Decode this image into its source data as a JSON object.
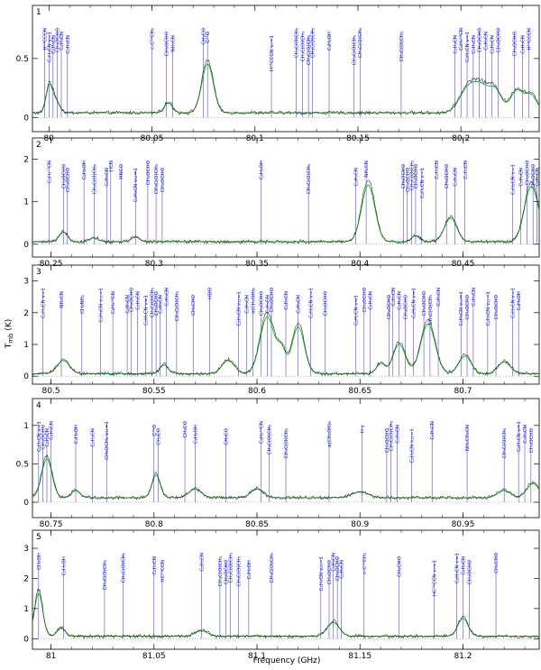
{
  "chart_data": {
    "type": "line",
    "xlabel": "Frequency (GHz)",
    "ylabel": "T_mb (K)",
    "series_colors": {
      "observed": "#222222",
      "model": "#19b019",
      "line_markers": "#2a2ad8"
    },
    "panels": [
      {
        "number": "1",
        "xlim": [
          79.992,
          80.238
        ],
        "ylim": [
          -0.12,
          0.95
        ],
        "xticks": [
          "80",
          "80.05",
          "80.1",
          "80.15",
          "80.2"
        ],
        "xtick_values": [
          80.0,
          80.05,
          80.1,
          80.15,
          80.2
        ],
        "yticks": [
          "0",
          "0.5"
        ],
        "ytick_values": [
          0,
          0.5
        ],
        "baseline": 0.04,
        "peaks": [
          [
            80.0,
            0.22,
            0.0015
          ],
          [
            80.003,
            0.12,
            0.002
          ],
          [
            80.058,
            0.09,
            0.002
          ],
          [
            80.077,
            0.45,
            0.0028
          ],
          [
            80.203,
            0.2,
            0.004
          ],
          [
            80.21,
            0.22,
            0.004
          ],
          [
            80.217,
            0.18,
            0.003
          ],
          [
            80.227,
            0.2,
            0.003
          ],
          [
            80.234,
            0.16,
            0.003
          ]
        ],
        "lines": [
          {
            "x": 79.998,
            "label": "H¹³CCCN"
          },
          {
            "x": 80.0,
            "label": "C₂H₅CN v=1"
          },
          {
            "x": 80.002,
            "label": "C₂H₅CN"
          },
          {
            "x": 80.004,
            "label": "CH₃OCHO"
          },
          {
            "x": 80.006,
            "label": "C₂H₃CN"
          },
          {
            "x": 80.009,
            "label": "C₂H₅CN"
          },
          {
            "x": 80.05,
            "label": "c-C¹³CH₂"
          },
          {
            "x": 80.057,
            "label": "CH₃OCHO"
          },
          {
            "x": 80.06,
            "label": "NH₂CN"
          },
          {
            "x": 80.075,
            "label": "CH₃CO"
          },
          {
            "x": 80.077,
            "label": "C¹⁷O"
          },
          {
            "x": 80.108,
            "label": "H¹³CCCN v₇=1"
          },
          {
            "x": 80.12,
            "label": "CH₃C(O)CH₃"
          },
          {
            "x": 80.123,
            "label": "CH₃C(O)CH₃"
          },
          {
            "x": 80.126,
            "label": "CH₃C(O)CH₃"
          },
          {
            "x": 80.128,
            "label": "CH₃C(O)CH₃"
          },
          {
            "x": 80.136,
            "label": "C₂H₃OH"
          },
          {
            "x": 80.148,
            "label": "CH₃C(O)CH₃"
          },
          {
            "x": 80.151,
            "label": "CH₃C(O)CH₃"
          },
          {
            "x": 80.171,
            "label": "CH₃C(O)CH₃"
          },
          {
            "x": 80.197,
            "label": "C₂H₃CN"
          },
          {
            "x": 80.2,
            "label": "C₂H₅¹³CN"
          },
          {
            "x": 80.203,
            "label": "C₂H₅CN v=1"
          },
          {
            "x": 80.206,
            "label": "C₂H₅CN"
          },
          {
            "x": 80.209,
            "label": "CH₃OCHO"
          },
          {
            "x": 80.212,
            "label": "C₂H₃CN"
          },
          {
            "x": 80.215,
            "label": "C₂H₅CN"
          },
          {
            "x": 80.218,
            "label": "CH₃OCHO"
          },
          {
            "x": 80.226,
            "label": "CH₃OCHO"
          },
          {
            "x": 80.23,
            "label": "C₂H₅CN"
          },
          {
            "x": 80.233,
            "label": "H¹³CCCN"
          }
        ]
      },
      {
        "number": "2",
        "xlim": [
          80.241,
          80.487
        ],
        "ylim": [
          -0.3,
          2.5
        ],
        "xticks": [
          "80.25",
          "80.3",
          "80.35",
          "80.4",
          "80.45"
        ],
        "xtick_values": [
          80.25,
          80.3,
          80.35,
          80.4,
          80.45
        ],
        "yticks": [
          "0",
          "1",
          "2"
        ],
        "ytick_values": [
          0,
          1,
          2
        ],
        "baseline": 0.06,
        "peaks": [
          [
            80.256,
            0.25,
            0.002
          ],
          [
            80.271,
            0.1,
            0.002
          ],
          [
            80.291,
            0.12,
            0.002
          ],
          [
            80.404,
            1.45,
            0.0032
          ],
          [
            80.427,
            0.15,
            0.002
          ],
          [
            80.444,
            0.6,
            0.003
          ],
          [
            80.482,
            0.9,
            0.003
          ],
          [
            80.485,
            0.7,
            0.003
          ]
        ],
        "lines": [
          {
            "x": 80.249,
            "label": "C₂H₅¹³CN"
          },
          {
            "x": 80.256,
            "label": "CH₃OCHO"
          },
          {
            "x": 80.258,
            "label": "CH₃OCHO"
          },
          {
            "x": 80.266,
            "label": "C₂H₃OH"
          },
          {
            "x": 80.271,
            "label": "CH₃C(O)CH₃"
          },
          {
            "x": 80.277,
            "label": "C₂H₅CN"
          },
          {
            "x": 80.279,
            "label": "HCN"
          },
          {
            "x": 80.284,
            "label": "HNCO"
          },
          {
            "x": 80.291,
            "label": "C₂H₃CN v₁₁=1"
          },
          {
            "x": 80.297,
            "label": "CH₃OCHO"
          },
          {
            "x": 80.301,
            "label": "CH₃C(O)CH₃"
          },
          {
            "x": 80.304,
            "label": "CH₃OCHO"
          },
          {
            "x": 80.352,
            "label": "C₂H₃OH"
          },
          {
            "x": 80.375,
            "label": "CH₃C(O)CH₃"
          },
          {
            "x": 80.398,
            "label": "C₂H₅CN"
          },
          {
            "x": 80.403,
            "label": "NH₂CN"
          },
          {
            "x": 80.421,
            "label": "CH₃OCHO"
          },
          {
            "x": 80.423,
            "label": "CH₃OCHO"
          },
          {
            "x": 80.425,
            "label": "CH₃C(O)CH₃"
          },
          {
            "x": 80.427,
            "label": "CH₃OCHO"
          },
          {
            "x": 80.43,
            "label": "C₂H₅CN v=1"
          },
          {
            "x": 80.437,
            "label": "C₂H₅CN"
          },
          {
            "x": 80.442,
            "label": "CH₃OCHO"
          },
          {
            "x": 80.446,
            "label": "C₂H₃CN"
          },
          {
            "x": 80.451,
            "label": "C₂H₅CN"
          },
          {
            "x": 80.474,
            "label": "C₂H₅CN v=1"
          },
          {
            "x": 80.478,
            "label": "C₂H₃CN"
          },
          {
            "x": 80.481,
            "label": "CH₃OCHO"
          },
          {
            "x": 80.484,
            "label": "CH₃OCHO"
          },
          {
            "x": 80.486,
            "label": "C₂H₅CN"
          }
        ]
      },
      {
        "number": "3",
        "xlim": [
          80.491,
          80.737
        ],
        "ylim": [
          -0.25,
          3.5
        ],
        "xticks": [
          "80.5",
          "80.55",
          "80.6",
          "80.65",
          "80.7"
        ],
        "xtick_values": [
          80.5,
          80.55,
          80.6,
          80.65,
          80.7
        ],
        "yticks": [
          "0",
          "1",
          "2",
          "3"
        ],
        "ytick_values": [
          0,
          1,
          2,
          3
        ],
        "baseline": 0.08,
        "peaks": [
          [
            80.506,
            0.45,
            0.003
          ],
          [
            80.555,
            0.3,
            0.002
          ],
          [
            80.586,
            0.45,
            0.003
          ],
          [
            80.605,
            1.95,
            0.0035
          ],
          [
            80.612,
            0.7,
            0.002
          ],
          [
            80.62,
            1.6,
            0.003
          ],
          [
            80.66,
            0.35,
            0.002
          ],
          [
            80.669,
            1.0,
            0.003
          ],
          [
            80.683,
            1.7,
            0.0035
          ],
          [
            80.701,
            0.6,
            0.003
          ],
          [
            80.72,
            0.4,
            0.003
          ]
        ],
        "lines": [
          {
            "x": 80.496,
            "label": "C₂H₅CN v=1"
          },
          {
            "x": 80.505,
            "label": "NH₂CN"
          },
          {
            "x": 80.515,
            "label": "CH₃NH₂"
          },
          {
            "x": 80.524,
            "label": "C₂H₃CN v₁₁=1"
          },
          {
            "x": 80.53,
            "label": "C₂H₅¹³CN"
          },
          {
            "x": 80.537,
            "label": "C₂H₅CN"
          },
          {
            "x": 80.539,
            "label": "CH₃OCHO"
          },
          {
            "x": 80.542,
            "label": "C₂H₃CN"
          },
          {
            "x": 80.546,
            "label": "C₂H₅CN v=1"
          },
          {
            "x": 80.549,
            "label": "CH₃C(O)CH₃"
          },
          {
            "x": 80.551,
            "label": "CH₃OCHO"
          },
          {
            "x": 80.553,
            "label": "C₂H₅CN"
          },
          {
            "x": 80.556,
            "label": "C₂H₃CN"
          },
          {
            "x": 80.561,
            "label": "CH₃C(O)CH₃"
          },
          {
            "x": 80.569,
            "label": "CH₃CHO"
          },
          {
            "x": 80.577,
            "label": "HDO"
          },
          {
            "x": 80.591,
            "label": "C₂H₃CN v₁₁=1"
          },
          {
            "x": 80.595,
            "label": "C₂H₅CN"
          },
          {
            "x": 80.598,
            "label": "a(CH₂OH)₂"
          },
          {
            "x": 80.602,
            "label": "CH₃OCHO"
          },
          {
            "x": 80.605,
            "label": "C₂H₅CN"
          },
          {
            "x": 80.607,
            "label": "CH₃OCHO"
          },
          {
            "x": 80.614,
            "label": "C₂H₅CN"
          },
          {
            "x": 80.62,
            "label": "C₂H₃CN"
          },
          {
            "x": 80.626,
            "label": "C₂H₅CN v=1"
          },
          {
            "x": 80.633,
            "label": "CH₃OCHO"
          },
          {
            "x": 80.648,
            "label": "C₂H₅CN v=1"
          },
          {
            "x": 80.652,
            "label": "CH₃OCHO"
          },
          {
            "x": 80.655,
            "label": "C₂H₅CN"
          },
          {
            "x": 80.664,
            "label": "CH₃OCHO"
          },
          {
            "x": 80.666,
            "label": "C₂H₅CN"
          },
          {
            "x": 80.669,
            "label": "C₂H₃CN"
          },
          {
            "x": 80.672,
            "label": "CH₃OCHO"
          },
          {
            "x": 80.676,
            "label": "C₂H₅CN v=1"
          },
          {
            "x": 80.681,
            "label": "CH₃OCHO"
          },
          {
            "x": 80.684,
            "label": "CH₃C(O)CH₃"
          },
          {
            "x": 80.688,
            "label": "C₂H₅CN"
          },
          {
            "x": 80.699,
            "label": "C₂H₃CN v₁₅=1"
          },
          {
            "x": 80.702,
            "label": "CH₃OCHO"
          },
          {
            "x": 80.705,
            "label": "C₂H₅CN"
          },
          {
            "x": 80.712,
            "label": "C₂H₃CN v₁₁=1"
          },
          {
            "x": 80.716,
            "label": "CH₃OCHO"
          },
          {
            "x": 80.724,
            "label": "C₂H₅CN v=1"
          },
          {
            "x": 80.727,
            "label": "C₂H₃OH"
          }
        ]
      },
      {
        "number": "4",
        "xlim": [
          80.741,
          80.987
        ],
        "ylim": [
          -0.2,
          1.35
        ],
        "xticks": [
          "80.75",
          "80.8",
          "80.85",
          "80.9",
          "80.95"
        ],
        "xtick_values": [
          80.75,
          80.8,
          80.85,
          80.9,
          80.95
        ],
        "yticks": [
          "0",
          "0.5",
          "1"
        ],
        "ytick_values": [
          0,
          0.5,
          1
        ],
        "baseline": 0.06,
        "peaks": [
          [
            80.748,
            0.55,
            0.0025
          ],
          [
            80.762,
            0.1,
            0.002
          ],
          [
            80.801,
            0.32,
            0.002
          ],
          [
            80.82,
            0.12,
            0.003
          ],
          [
            80.85,
            0.12,
            0.003
          ],
          [
            80.9,
            0.08,
            0.004
          ],
          [
            80.97,
            0.1,
            0.003
          ],
          [
            80.984,
            0.2,
            0.003
          ]
        ],
        "lines": [
          {
            "x": 80.744,
            "label": "C₂H₅CN v=1"
          },
          {
            "x": 80.746,
            "label": "CH₃OCHO"
          },
          {
            "x": 80.748,
            "label": "C₂H₅CN"
          },
          {
            "x": 80.75,
            "label": "C₂H₃CN"
          },
          {
            "x": 80.762,
            "label": "C₂H₅OH"
          },
          {
            "x": 80.77,
            "label": "C₂H₃CN"
          },
          {
            "x": 80.777,
            "label": "CH₃OCH₃ v₁₁=1"
          },
          {
            "x": 80.8,
            "label": "C¹⁷O"
          },
          {
            "x": 80.802,
            "label": "CH₃CO"
          },
          {
            "x": 80.815,
            "label": "CH₃CO"
          },
          {
            "x": 80.82,
            "label": "C₂H₃OH"
          },
          {
            "x": 80.835,
            "label": "CH₃CO"
          },
          {
            "x": 80.852,
            "label": "C₂H₅¹³CN"
          },
          {
            "x": 80.856,
            "label": "CH₃C(O)CH₃"
          },
          {
            "x": 80.864,
            "label": "CH₃C(O)CH₃"
          },
          {
            "x": 80.885,
            "label": "a(CH₂OH)₂"
          },
          {
            "x": 80.901,
            "label": "H γ"
          },
          {
            "x": 80.913,
            "label": "CH₃OCHO"
          },
          {
            "x": 80.915,
            "label": "CH₃C(O)CH₃"
          },
          {
            "x": 80.918,
            "label": "C₂H₅CN"
          },
          {
            "x": 80.925,
            "label": "C₂H₃CN v₁₁=1"
          },
          {
            "x": 80.935,
            "label": "C₂H₅CN"
          },
          {
            "x": 80.952,
            "label": "NH₂CH₂CN"
          },
          {
            "x": 80.97,
            "label": "CH₃C(O)CH₃"
          },
          {
            "x": 80.977,
            "label": "C₂H₅CN v=1"
          },
          {
            "x": 80.98,
            "label": "C₂H₃CN"
          },
          {
            "x": 80.983,
            "label": "CH₃OCHO"
          }
        ]
      },
      {
        "number": "5",
        "xlim": [
          80.991,
          81.237
        ],
        "ylim": [
          -0.35,
          3.6
        ],
        "xticks": [
          "81",
          "81.05",
          "81.1",
          "81.15",
          "81.2"
        ],
        "xtick_values": [
          81.0,
          81.05,
          81.1,
          81.15,
          81.2
        ],
        "yticks": [
          "0",
          "1",
          "2",
          "3"
        ],
        "ytick_values": [
          0,
          1,
          2,
          3
        ],
        "baseline": 0.08,
        "peaks": [
          [
            80.994,
            1.55,
            0.002
          ],
          [
            81.005,
            0.3,
            0.002
          ],
          [
            81.073,
            0.2,
            0.003
          ],
          [
            81.137,
            0.5,
            0.003
          ],
          [
            81.2,
            0.65,
            0.0025
          ]
        ],
        "lines": [
          {
            "x": 80.994,
            "label": "CH₃OH"
          },
          {
            "x": 81.006,
            "label": "C₂H₅OH"
          },
          {
            "x": 81.026,
            "label": "CH₃C(O)CH₃"
          },
          {
            "x": 81.035,
            "label": "CH₃C(O)CH₃"
          },
          {
            "x": 81.05,
            "label": "C₂H₅CN"
          },
          {
            "x": 81.054,
            "label": "HC¹³CCN"
          },
          {
            "x": 81.073,
            "label": "C₂H₅CN"
          },
          {
            "x": 81.082,
            "label": "CH₃C(O)CH₃"
          },
          {
            "x": 81.085,
            "label": "CH₃OCHO"
          },
          {
            "x": 81.087,
            "label": "CH₃C(O)CH₃"
          },
          {
            "x": 81.091,
            "label": "CH₃C(O)CH₃"
          },
          {
            "x": 81.096,
            "label": "C₂H₅OH"
          },
          {
            "x": 81.107,
            "label": "CH₃C(O)CH₃"
          },
          {
            "x": 81.131,
            "label": "C₂H₃CN v₁₅=1"
          },
          {
            "x": 81.135,
            "label": "CH₃OCHO"
          },
          {
            "x": 81.137,
            "label": "C₂H₅CN"
          },
          {
            "x": 81.139,
            "label": "CH₃OCHO"
          },
          {
            "x": 81.141,
            "label": "C₂H₃CN"
          },
          {
            "x": 81.152,
            "label": "c-C¹³CH₂"
          },
          {
            "x": 81.169,
            "label": "CH₃CHO"
          },
          {
            "x": 81.186,
            "label": "HC¹³CCN v₇=1"
          },
          {
            "x": 81.197,
            "label": "C₂H₅CN v=1"
          },
          {
            "x": 81.2,
            "label": "C₂H₃CN"
          },
          {
            "x": 81.203,
            "label": "CH₃OCHO"
          },
          {
            "x": 81.216,
            "label": "CH₃CHO"
          }
        ]
      }
    ]
  }
}
